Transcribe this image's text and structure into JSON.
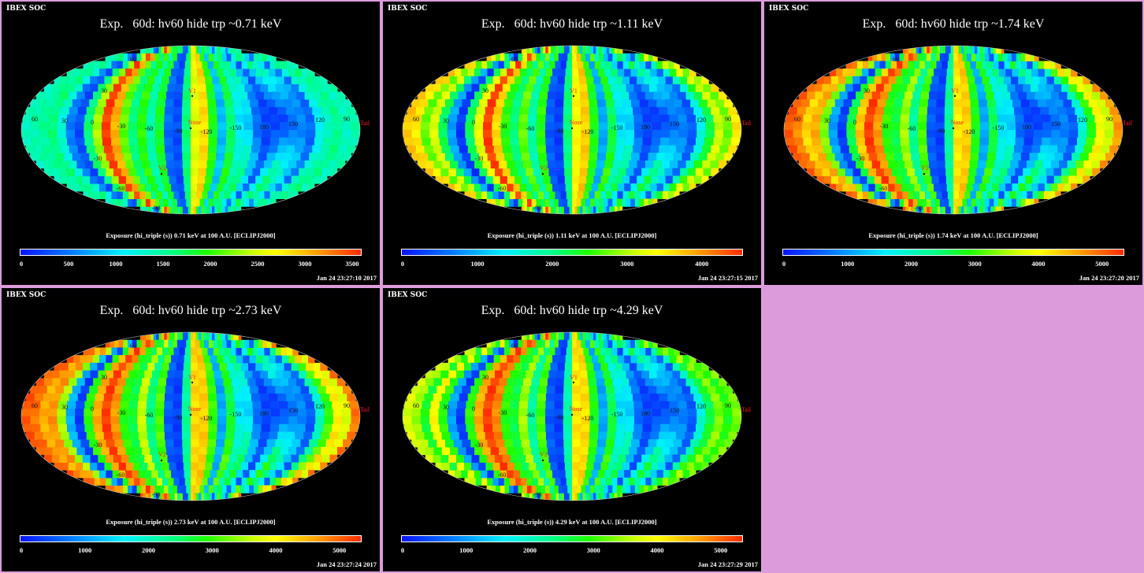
{
  "panels": [
    {
      "soc": "IBEX SOC",
      "title": "Exp.   60d: hv60 hide trp ~0.71 keV",
      "caption": "Exposure (hi_triple (s))  0.71 keV at 100 A.U. [ECLIPJ2000]",
      "ticks": [
        "0",
        "500",
        "1000",
        "1500",
        "2000",
        "2500",
        "3000",
        "3500"
      ],
      "tick_values": [
        0,
        500,
        1000,
        1500,
        2000,
        2500,
        3000,
        3500
      ],
      "vmax": 3600,
      "timestamp": "Jan 24 23:27:10 2017"
    },
    {
      "soc": "IBEX SOC",
      "title": "Exp.   60d: hv60 hide trp ~1.11 keV",
      "caption": "Exposure (hi_triple (s))  1.11 keV at 100 A.U. [ECLIPJ2000]",
      "ticks": [
        "0",
        "1000",
        "2000",
        "3000",
        "4000"
      ],
      "tick_values": [
        0,
        1000,
        2000,
        3000,
        4000
      ],
      "vmax": 4550,
      "timestamp": "Jan 24 23:27:15 2017"
    },
    {
      "soc": "IBEX SOC",
      "title": "Exp.   60d: hv60 hide trp ~1.74 keV",
      "caption": "Exposure (hi_triple (s))  1.74 keV at 100 A.U. [ECLIPJ2000]",
      "ticks": [
        "0",
        "1000",
        "2000",
        "3000",
        "4000",
        "5000"
      ],
      "tick_values": [
        0,
        1000,
        2000,
        3000,
        4000,
        5000
      ],
      "vmax": 5350,
      "timestamp": "Jan 24 23:27:20 2017"
    },
    {
      "soc": "IBEX SOC",
      "title": "Exp.   60d: hv60 hide trp ~2.73 keV",
      "caption": "Exposure (hi_triple (s))  2.73 keV at 100 A.U. [ECLIPJ2000]",
      "ticks": [
        "0",
        "1000",
        "2000",
        "3000",
        "4000",
        "5000"
      ],
      "tick_values": [
        0,
        1000,
        2000,
        3000,
        4000,
        5000
      ],
      "vmax": 5350,
      "timestamp": "Jan 24 23:27:24 2017"
    },
    {
      "soc": "IBEX SOC",
      "title": "Exp.   60d: hv60 hide trp ~4.29 keV",
      "caption": "Exposure (hi_triple (s))  4.29 keV at 100 A.U. [ECLIPJ2000]",
      "ticks": [
        "0",
        "1000",
        "2000",
        "3000",
        "4000",
        "5000"
      ],
      "tick_values": [
        0,
        1000,
        2000,
        3000,
        4000,
        5000
      ],
      "vmax": 5350,
      "timestamp": "Jan 24 23:27:29 2017"
    }
  ],
  "map_labels": {
    "lon": [
      "60",
      "30",
      "0",
      "-30",
      "-60",
      "-90",
      "-120",
      "-150",
      "180",
      "150",
      "120",
      "90"
    ],
    "lat": [
      "60",
      "30",
      "-30",
      "-60",
      "-90"
    ],
    "markers": {
      "v1": "V1",
      "nose": "Nose",
      "v2": "V2",
      "tail": "Tail"
    }
  },
  "colors": {
    "background": "#dc9cdc",
    "panel": "#000000",
    "marker": "#ff2020"
  }
}
